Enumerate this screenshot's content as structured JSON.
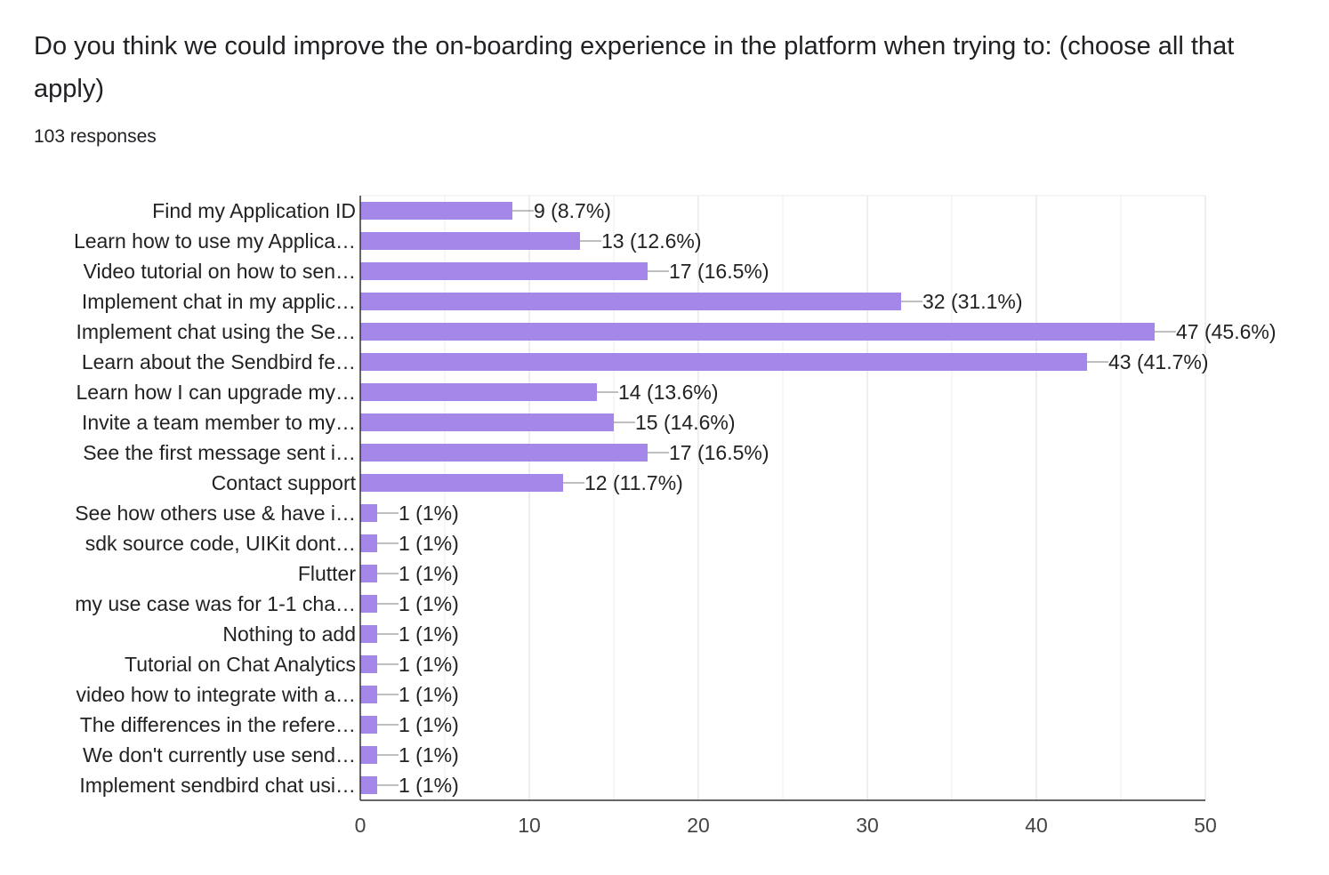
{
  "header": {
    "title": "Do you think we could improve the on-boarding experience in the platform when trying to: (choose all that apply)",
    "responses": "103 responses"
  },
  "colors": {
    "bar": "#a487e8",
    "grid": "#e8e8e8",
    "axis": "#333333",
    "leader": "#999999"
  },
  "chart_data": {
    "type": "bar",
    "orientation": "horizontal",
    "title": "Do you think we could improve the on-boarding experience in the platform when trying to: (choose all that apply)",
    "xlabel": "",
    "ylabel": "",
    "xlim": [
      0,
      50
    ],
    "ticks": [
      0,
      10,
      20,
      30,
      40,
      50
    ],
    "grid": true,
    "categories": [
      "Find my Application ID",
      "Learn how to use my Applica…",
      "Video tutorial on how to sen…",
      "Implement chat in my applic…",
      "Implement chat using the Se…",
      "Learn about the Sendbird fe…",
      "Learn how I can upgrade my…",
      "Invite a team member to my…",
      "See the first message sent i…",
      "Contact support",
      "See how others use & have i…",
      "sdk source code, UIKit dont…",
      "Flutter",
      "my use case was for 1-1 cha…",
      "Nothing to add",
      "Tutorial on Chat Analytics",
      "video how to integrate with a…",
      "The differences in the refere…",
      "We don't currently use send…",
      "Implement sendbird chat usi…"
    ],
    "values": [
      9,
      13,
      17,
      32,
      47,
      43,
      14,
      15,
      17,
      12,
      1,
      1,
      1,
      1,
      1,
      1,
      1,
      1,
      1,
      1
    ],
    "data_labels": [
      "9 (8.7%)",
      "13 (12.6%)",
      "17 (16.5%)",
      "32 (31.1%)",
      "47 (45.6%)",
      "43 (41.7%)",
      "14 (13.6%)",
      "15 (14.6%)",
      "17 (16.5%)",
      "12 (11.7%)",
      "1 (1%)",
      "1 (1%)",
      "1 (1%)",
      "1 (1%)",
      "1 (1%)",
      "1 (1%)",
      "1 (1%)",
      "1 (1%)",
      "1 (1%)",
      "1 (1%)"
    ]
  }
}
